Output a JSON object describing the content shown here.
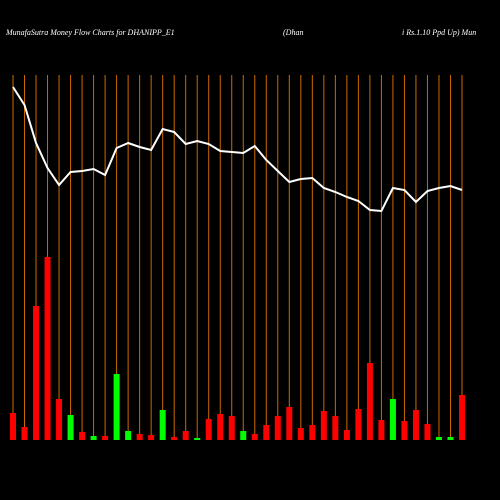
{
  "chart_data": {
    "type": "money-flow",
    "title": "MunafaSutra  Money Flow  Charts for DHANIPP_E1",
    "subtitle_left": "(Dhan",
    "subtitle_right": "i  Rs.1.10  Ppd Up) Mun",
    "ylim": [
      0,
      360
    ],
    "bar_values": [
      27,
      13,
      134,
      183,
      41,
      25,
      8,
      4,
      4,
      66,
      9,
      6,
      5,
      30,
      3,
      9,
      2,
      21,
      26,
      24,
      9,
      6,
      15,
      24,
      33,
      12,
      15,
      29,
      24,
      10,
      31,
      77,
      20,
      41,
      19,
      30,
      16,
      3,
      3,
      45
    ],
    "bar_colors": [
      "red",
      "red",
      "red",
      "red",
      "red",
      "lime",
      "red",
      "lime",
      "red",
      "lime",
      "lime",
      "red",
      "red",
      "lime",
      "red",
      "red",
      "lime",
      "red",
      "red",
      "red",
      "lime",
      "red",
      "red",
      "red",
      "red",
      "red",
      "red",
      "red",
      "red",
      "red",
      "red",
      "red",
      "red",
      "lime",
      "red",
      "red",
      "red",
      "lime",
      "lime",
      "red"
    ],
    "line_values": [
      353,
      335,
      297,
      272,
      255,
      268,
      269,
      271,
      265,
      292,
      297,
      293,
      290,
      311,
      308,
      296,
      299,
      296,
      289,
      288,
      287,
      294,
      280,
      269,
      258,
      261,
      262,
      252,
      248,
      243,
      239,
      230,
      229,
      252,
      250,
      238,
      249,
      252,
      254,
      250
    ],
    "line_color": "#ffffff",
    "grid_color": "#cc6a00"
  }
}
